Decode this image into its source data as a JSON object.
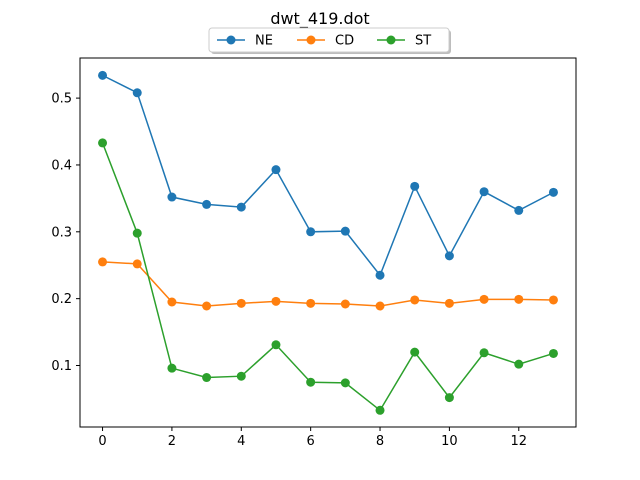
{
  "chart_data": {
    "type": "line",
    "title": "dwt_419.dot",
    "xlabel": "",
    "ylabel": "",
    "x": [
      0,
      1,
      2,
      3,
      4,
      5,
      6,
      7,
      8,
      9,
      10,
      11,
      12,
      13
    ],
    "xlim": [
      -0.65,
      13.65
    ],
    "ylim": [
      0.008,
      0.56
    ],
    "xticks": [
      0,
      2,
      4,
      6,
      8,
      10,
      12
    ],
    "yticks": [
      0.1,
      0.2,
      0.3,
      0.4,
      0.5
    ],
    "grid": false,
    "legend_position": "top-center",
    "series": [
      {
        "name": "NE",
        "color": "#1f77b4",
        "values": [
          0.534,
          0.508,
          0.352,
          0.341,
          0.337,
          0.393,
          0.3,
          0.301,
          0.235,
          0.368,
          0.264,
          0.36,
          0.332,
          0.359
        ]
      },
      {
        "name": "CD",
        "color": "#ff7f0e",
        "values": [
          0.255,
          0.252,
          0.195,
          0.189,
          0.193,
          0.196,
          0.193,
          0.192,
          0.189,
          0.198,
          0.193,
          0.199,
          0.199,
          0.198
        ]
      },
      {
        "name": "ST",
        "color": "#2ca02c",
        "values": [
          0.433,
          0.298,
          0.096,
          0.082,
          0.084,
          0.131,
          0.075,
          0.074,
          0.033,
          0.12,
          0.052,
          0.119,
          0.102,
          0.118
        ]
      }
    ]
  }
}
